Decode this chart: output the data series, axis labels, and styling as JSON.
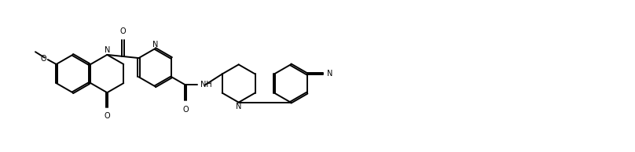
{
  "figsize": [
    8.08,
    1.94
  ],
  "dpi": 100,
  "xlim": [
    0,
    8.08
  ],
  "ylim": [
    0,
    1.94
  ],
  "lw": 1.4,
  "fs": 7.0,
  "r": 0.245,
  "off": 0.011,
  "bg": "#ffffff"
}
